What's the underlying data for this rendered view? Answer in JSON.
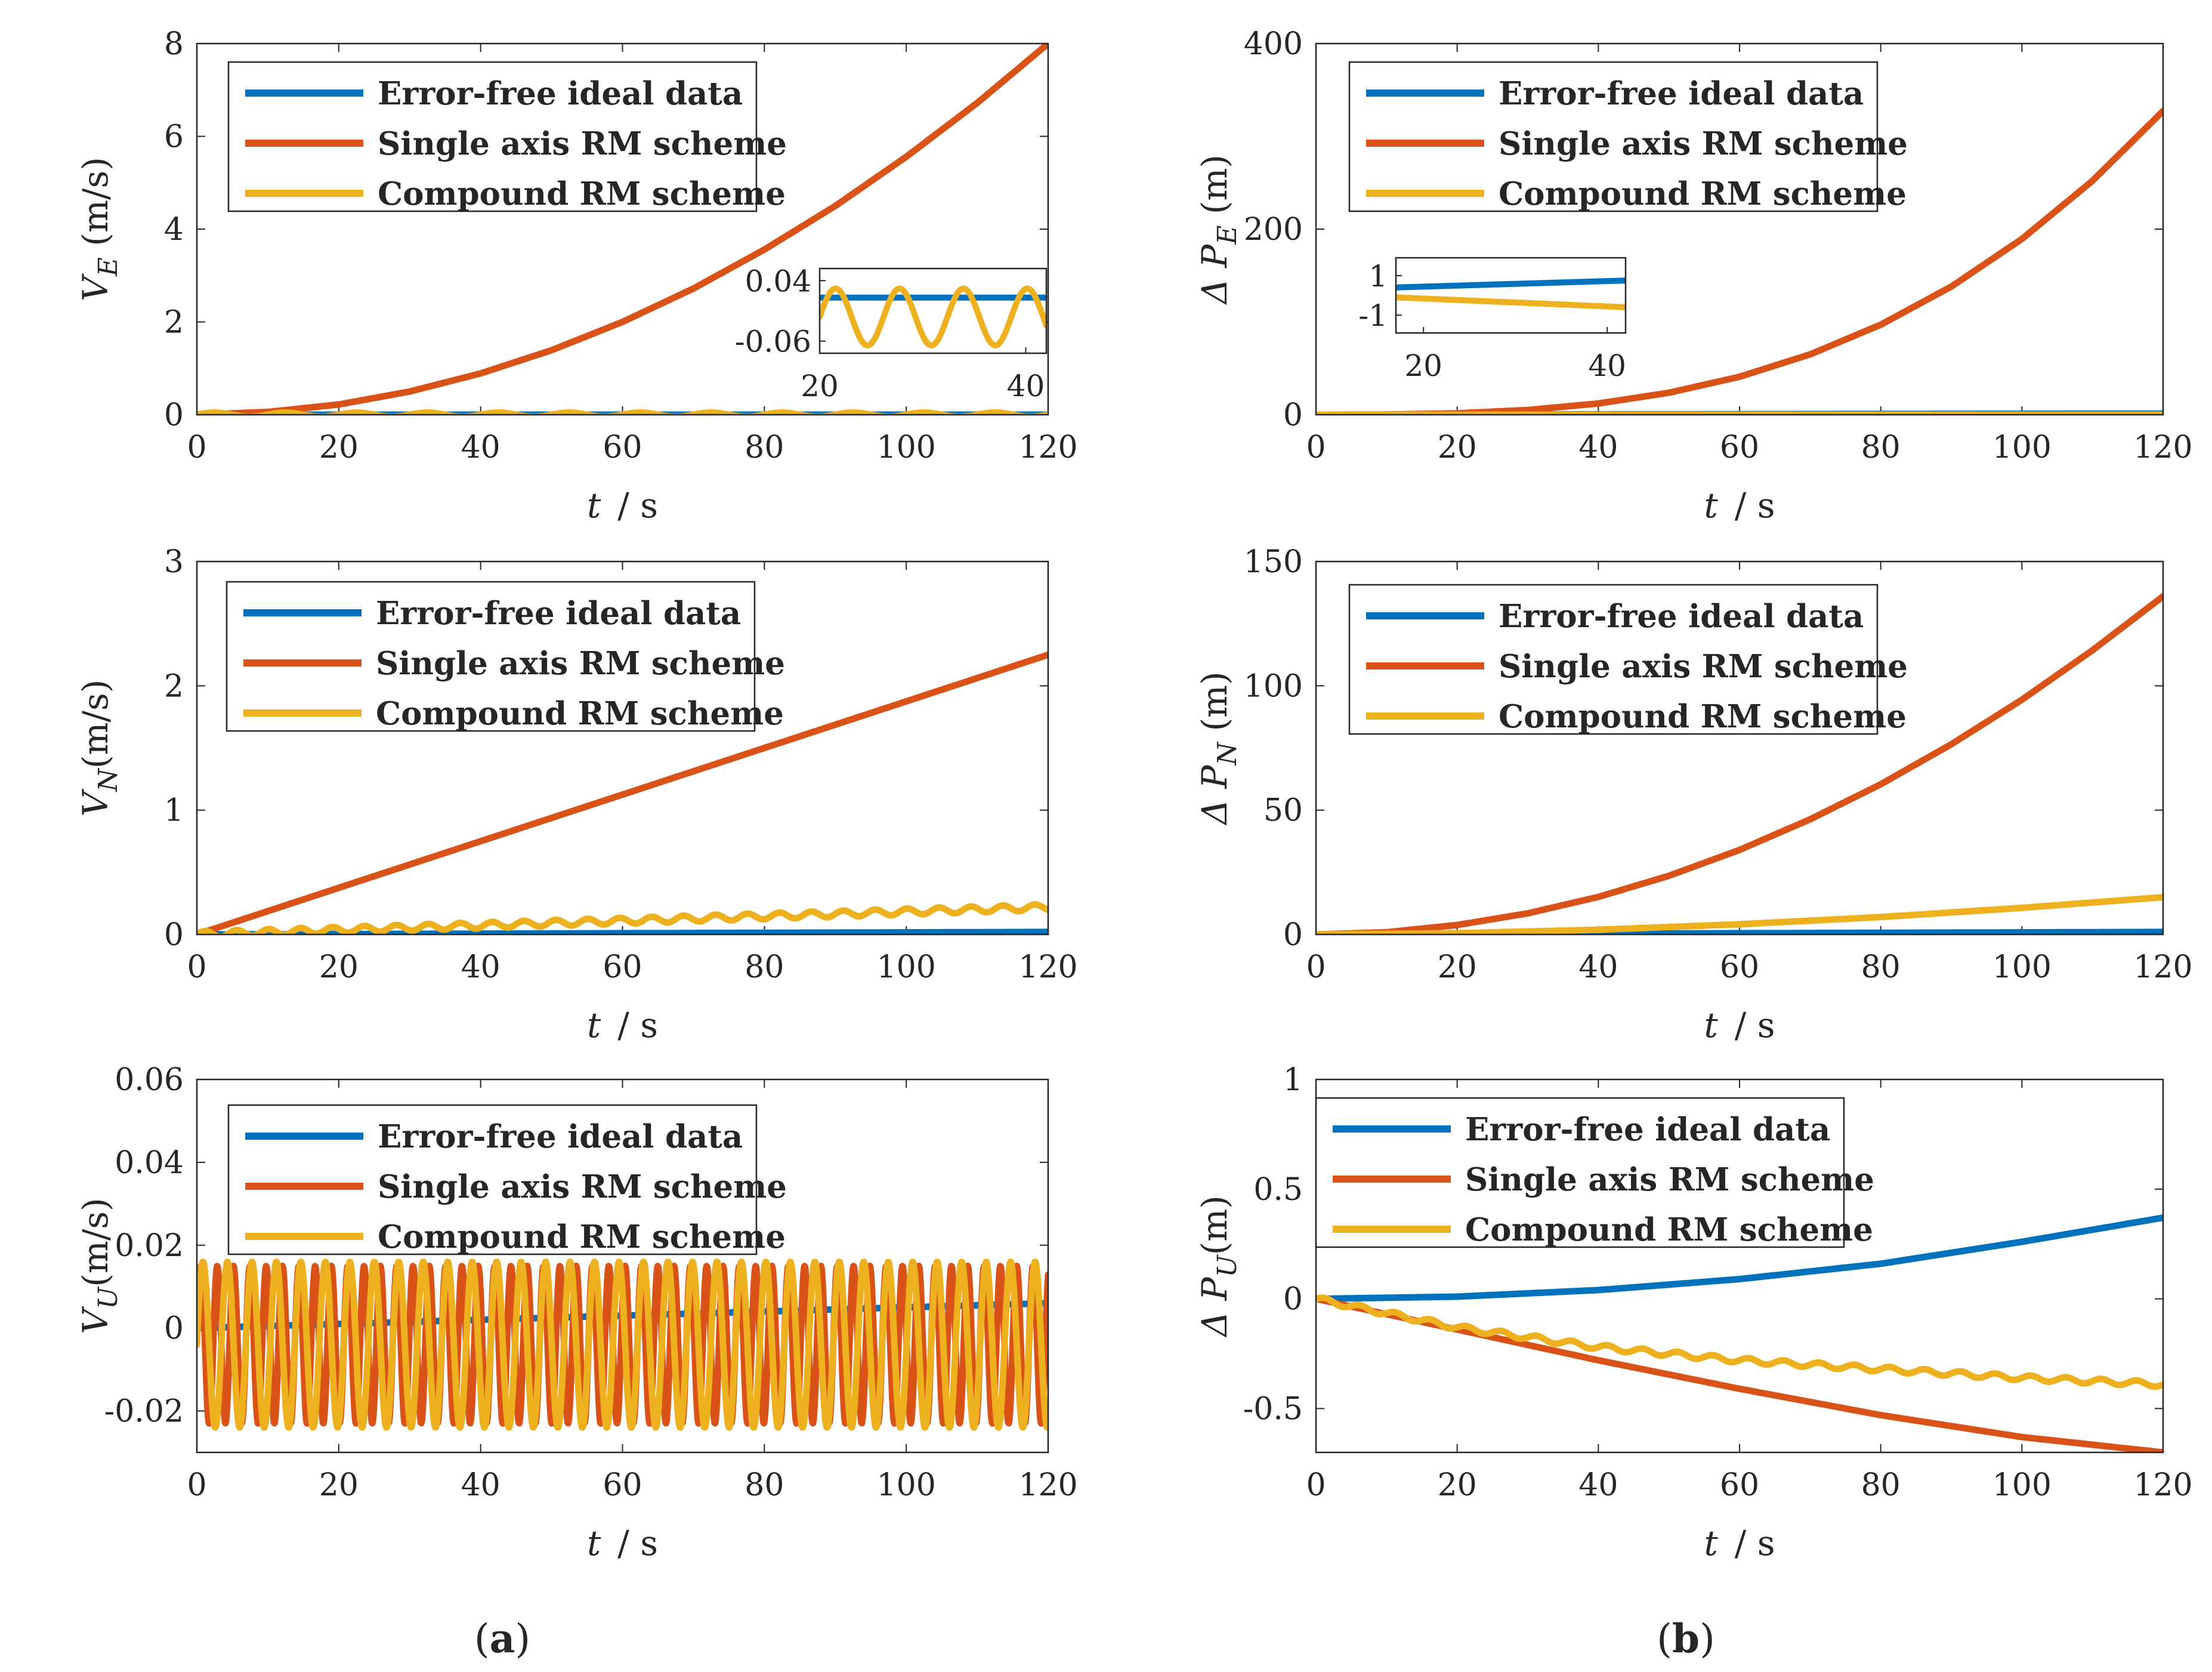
{
  "panel_labels": {
    "a": "a",
    "b": "b"
  },
  "xlabel": {
    "var": "t",
    "unit": "/ s"
  },
  "legend": [
    "Error-free ideal data",
    "Single axis RM scheme",
    "Compound RM scheme"
  ],
  "colors": {
    "ideal": "#0072BD",
    "single": "#D95319",
    "compound": "#EDB120",
    "axis": "#262626"
  },
  "chart_data": [
    {
      "id": "VE",
      "type": "line",
      "column": "a",
      "row": 0,
      "ylabel": {
        "sym": "V",
        "sub": "E",
        "unit": " (m/s)"
      },
      "xlim": [
        0,
        120
      ],
      "ylim": [
        0,
        8
      ],
      "xticks": [
        0,
        20,
        40,
        60,
        80,
        100,
        120
      ],
      "yticks": [
        0,
        2,
        4,
        6,
        8
      ],
      "ytick_labels": [
        "0",
        "2",
        "4",
        "6",
        "8"
      ],
      "legend_position": "top-left",
      "series": [
        {
          "name": "Error-free ideal data",
          "x": [
            0,
            120
          ],
          "y": [
            0,
            0
          ]
        },
        {
          "name": "Single axis RM scheme",
          "x": [
            0,
            10,
            20,
            30,
            40,
            50,
            60,
            70,
            80,
            90,
            100,
            110,
            120
          ],
          "y": [
            0,
            0.06,
            0.22,
            0.5,
            0.89,
            1.39,
            2.0,
            2.72,
            3.56,
            4.5,
            5.56,
            6.72,
            8.0
          ]
        },
        {
          "name": "Compound RM scheme",
          "x": [
            0,
            120
          ],
          "y": [
            0,
            0
          ],
          "oscillation": {
            "amplitude": 0.045,
            "period": 10
          }
        }
      ],
      "inset": {
        "xlim": [
          20,
          42
        ],
        "ylim": [
          -0.08,
          0.06
        ],
        "xticks": [
          20,
          40
        ],
        "xtick_labels": [
          "20",
          "40"
        ],
        "yticks": [
          0.04,
          -0.06
        ],
        "ytick_labels": [
          "0.04",
          "-0.06"
        ],
        "series": [
          {
            "name": "Error-free ideal data",
            "x": [
              20,
              42
            ],
            "y": [
              0.012,
              0.012
            ]
          },
          {
            "name": "Compound RM scheme",
            "center": -0.02,
            "amplitude": 0.047,
            "period": 6.2
          }
        ]
      }
    },
    {
      "id": "PE",
      "type": "line",
      "column": "b",
      "row": 0,
      "ylabel": {
        "sym": "Δ P",
        "sub": "E",
        "unit": " (m)"
      },
      "xlim": [
        0,
        120
      ],
      "ylim": [
        0,
        400
      ],
      "xticks": [
        0,
        20,
        40,
        60,
        80,
        100,
        120
      ],
      "yticks": [
        0,
        200,
        400
      ],
      "ytick_labels": [
        "0",
        "200",
        "400"
      ],
      "legend_position": "top-left",
      "series": [
        {
          "name": "Error-free ideal data",
          "x": [
            0,
            120
          ],
          "y": [
            0,
            1.2
          ]
        },
        {
          "name": "Single axis RM scheme",
          "x": [
            0,
            10,
            20,
            30,
            40,
            50,
            60,
            70,
            80,
            90,
            100,
            110,
            120
          ],
          "y": [
            0,
            0.2,
            1.5,
            5.1,
            12.1,
            23.7,
            40.9,
            65.0,
            97.0,
            138.1,
            189.4,
            252.1,
            327.3
          ]
        },
        {
          "name": "Compound RM scheme",
          "x": [
            0,
            120
          ],
          "y": [
            0,
            0
          ]
        }
      ],
      "inset": {
        "xlim": [
          17,
          42
        ],
        "ylim": [
          -1.9,
          1.9
        ],
        "xticks": [
          20,
          40
        ],
        "xtick_labels": [
          "20",
          "40"
        ],
        "yticks": [
          1,
          -1
        ],
        "ytick_labels": [
          "1",
          "-1"
        ],
        "series": [
          {
            "name": "Error-free ideal data",
            "x": [
              17,
              42
            ],
            "y": [
              0.4,
              0.75
            ]
          },
          {
            "name": "Compound RM scheme",
            "x": [
              17,
              42
            ],
            "y": [
              -0.1,
              -0.6
            ]
          }
        ]
      }
    },
    {
      "id": "VN",
      "type": "line",
      "column": "a",
      "row": 1,
      "ylabel": {
        "sym": "V",
        "sub": "N",
        "unit": "(m/s)"
      },
      "xlim": [
        0,
        120
      ],
      "ylim": [
        0,
        3
      ],
      "xticks": [
        0,
        20,
        40,
        60,
        80,
        100,
        120
      ],
      "yticks": [
        0,
        1,
        2,
        3
      ],
      "ytick_labels": [
        "0",
        "1",
        "2",
        "3"
      ],
      "legend_position": "top-left",
      "series": [
        {
          "name": "Error-free ideal data",
          "x": [
            0,
            120
          ],
          "y": [
            0,
            0.02
          ]
        },
        {
          "name": "Single axis RM scheme",
          "x": [
            0,
            120
          ],
          "y": [
            0,
            2.25
          ]
        },
        {
          "name": "Compound RM scheme",
          "x": [
            0,
            120
          ],
          "y": [
            0,
            0.22
          ],
          "oscillation": {
            "amplitude": 0.025,
            "period": 4.5
          }
        }
      ]
    },
    {
      "id": "PN",
      "type": "line",
      "column": "b",
      "row": 1,
      "ylabel": {
        "sym": "Δ P",
        "sub": "N",
        "unit": " (m)"
      },
      "xlim": [
        0,
        120
      ],
      "ylim": [
        0,
        150
      ],
      "xticks": [
        0,
        20,
        40,
        60,
        80,
        100,
        120
      ],
      "yticks": [
        0,
        50,
        100,
        150
      ],
      "ytick_labels": [
        "0",
        "50",
        "100",
        "150"
      ],
      "legend_position": "top-left",
      "series": [
        {
          "name": "Error-free ideal data",
          "x": [
            0,
            120
          ],
          "y": [
            0,
            1
          ]
        },
        {
          "name": "Single axis RM scheme",
          "x": [
            0,
            10,
            20,
            30,
            40,
            50,
            60,
            70,
            80,
            90,
            100,
            110,
            120
          ],
          "y": [
            0,
            0.9,
            3.8,
            8.5,
            15.1,
            23.6,
            34.0,
            46.3,
            60.4,
            76.5,
            94.4,
            114.3,
            136.0
          ]
        },
        {
          "name": "Compound RM scheme",
          "x": [
            0,
            20,
            40,
            60,
            80,
            100,
            120
          ],
          "y": [
            0,
            0.5,
            1.9,
            4.1,
            7.0,
            10.7,
            15.0
          ]
        }
      ]
    },
    {
      "id": "VU",
      "type": "line",
      "column": "a",
      "row": 2,
      "ylabel": {
        "sym": "V",
        "sub": "U",
        "unit": "(m/s)"
      },
      "xlim": [
        0,
        120
      ],
      "ylim": [
        -0.03,
        0.06
      ],
      "xticks": [
        0,
        20,
        40,
        60,
        80,
        100,
        120
      ],
      "yticks": [
        -0.02,
        0,
        0.02,
        0.04,
        0.06
      ],
      "ytick_labels": [
        "-0.02",
        "0",
        "0.02",
        "0.04",
        "0.06"
      ],
      "legend_position": "top-left",
      "series": [
        {
          "name": "Error-free ideal data",
          "x": [
            0,
            120
          ],
          "y": [
            0,
            0.006
          ]
        },
        {
          "name": "Single axis RM scheme",
          "x": [
            0,
            120
          ],
          "y": [
            -0.004,
            -0.004
          ],
          "oscillation": {
            "amplitude": 0.019,
            "period": 2.3
          }
        },
        {
          "name": "Compound RM scheme",
          "x": [
            0,
            120
          ],
          "y": [
            -0.004,
            -0.004
          ],
          "oscillation": {
            "amplitude": 0.02,
            "period": 3.45
          }
        }
      ]
    },
    {
      "id": "PU",
      "type": "line",
      "column": "b",
      "row": 2,
      "ylabel": {
        "sym": "Δ P",
        "sub": "U",
        "unit": "(m)"
      },
      "xlim": [
        0,
        120
      ],
      "ylim": [
        -0.7,
        1
      ],
      "xticks": [
        0,
        20,
        40,
        60,
        80,
        100,
        120
      ],
      "yticks": [
        -0.5,
        0,
        0.5,
        1
      ],
      "ytick_labels": [
        "-0.5",
        "0",
        "0.5",
        "1"
      ],
      "legend_position": "top-left",
      "series": [
        {
          "name": "Error-free ideal data",
          "x": [
            0,
            20,
            40,
            60,
            80,
            100,
            120
          ],
          "y": [
            0,
            0.01,
            0.04,
            0.09,
            0.16,
            0.26,
            0.37
          ]
        },
        {
          "name": "Single axis RM scheme",
          "x": [
            0,
            20,
            40,
            60,
            80,
            100,
            120
          ],
          "y": [
            0,
            -0.14,
            -0.28,
            -0.41,
            -0.53,
            -0.63,
            -0.7
          ]
        },
        {
          "name": "Compound RM scheme",
          "x": [
            0,
            20,
            40,
            60,
            80,
            100,
            120
          ],
          "y": [
            0,
            -0.13,
            -0.22,
            -0.28,
            -0.32,
            -0.36,
            -0.39
          ],
          "oscillation": {
            "amplitude": 0.012,
            "period": 5
          }
        }
      ]
    }
  ]
}
